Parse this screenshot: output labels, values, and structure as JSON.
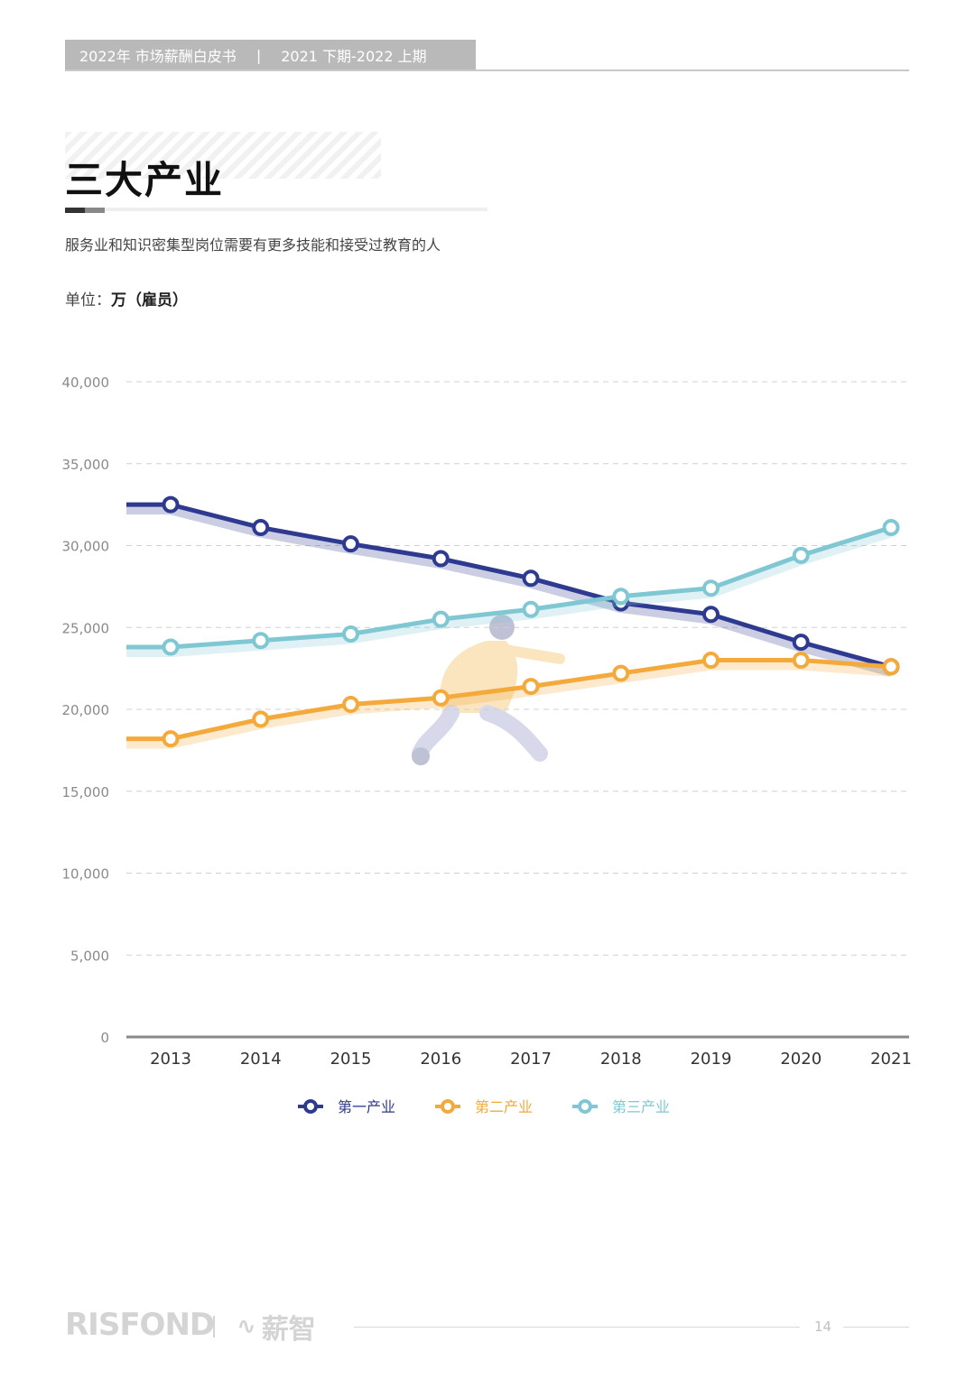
{
  "header": {
    "title": "2022年 市场薪酬白皮书",
    "separator": "|",
    "period": "2021 下期-2022 上期"
  },
  "section": {
    "title": "三大产业",
    "subtitle": "服务业和知识密集型岗位需要有更多技能和接受过教育的人",
    "unit_label": "单位：",
    "unit_value": "万（雇员）"
  },
  "chart_data": {
    "type": "line",
    "categories": [
      "2013",
      "2014",
      "2015",
      "2016",
      "2017",
      "2018",
      "2019",
      "2020",
      "2021"
    ],
    "series": [
      {
        "name": "第一产业",
        "color": "#2e3a8f",
        "values": [
          32500,
          31100,
          30100,
          29200,
          28000,
          26500,
          25800,
          24100,
          22600
        ]
      },
      {
        "name": "第二产业",
        "color": "#f4a93b",
        "values": [
          18200,
          19400,
          20300,
          20700,
          21400,
          22200,
          23000,
          23000,
          22600
        ]
      },
      {
        "name": "第三产业",
        "color": "#7fc8d3",
        "values": [
          23800,
          24200,
          24600,
          25500,
          26100,
          26900,
          27400,
          29400,
          31100
        ]
      }
    ],
    "yticks": [
      "40,000",
      "35,000",
      "30,000",
      "25,000",
      "20,000",
      "15,000",
      "10,000",
      "5,000",
      "0"
    ],
    "ylim": [
      0,
      40000
    ],
    "grid": true,
    "legend_position": "bottom",
    "xlabel": "",
    "ylabel": ""
  },
  "footer": {
    "logo_text": "RISFOND",
    "logo2_text": "薪智",
    "page_number": "14"
  }
}
